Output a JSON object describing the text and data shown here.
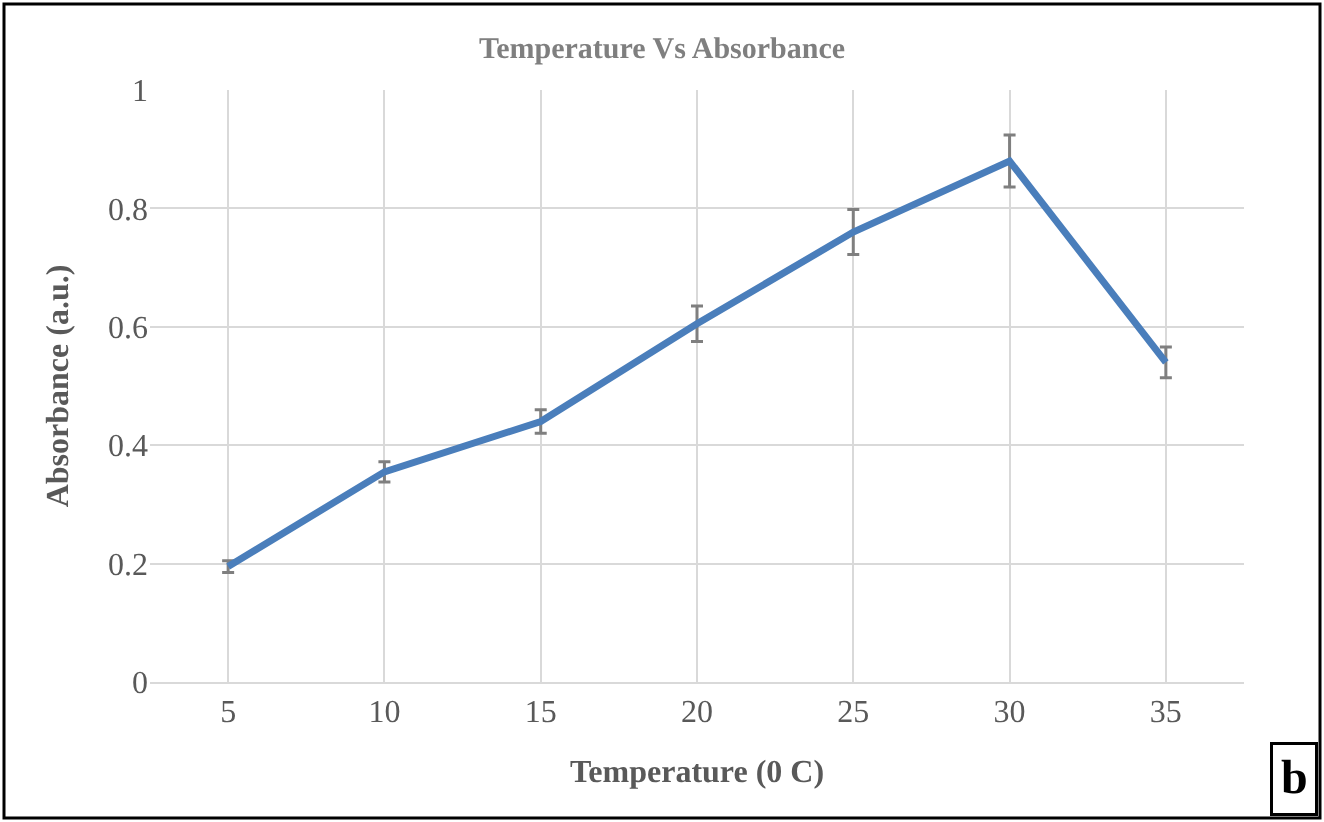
{
  "chart_data": {
    "type": "line",
    "title": "Temperature Vs Absorbance",
    "xlabel": "Temperature (0 C)",
    "ylabel": "Absorbance (a.u.)",
    "categories": [
      "5",
      "10",
      "15",
      "20",
      "25",
      "30",
      "35"
    ],
    "series": [
      {
        "color": "#4a7ebb",
        "values": [
          0.195,
          0.355,
          0.44,
          0.605,
          0.76,
          0.88,
          0.54
        ],
        "errors": [
          0.01,
          0.017,
          0.02,
          0.03,
          0.038,
          0.044,
          0.026
        ]
      }
    ],
    "ylim": [
      0,
      1
    ],
    "yticks": [
      0,
      0.2,
      0.4,
      0.6,
      0.8,
      1
    ],
    "grid": true,
    "marker": "none",
    "line_style": "solid",
    "annotations": [
      "b"
    ]
  }
}
